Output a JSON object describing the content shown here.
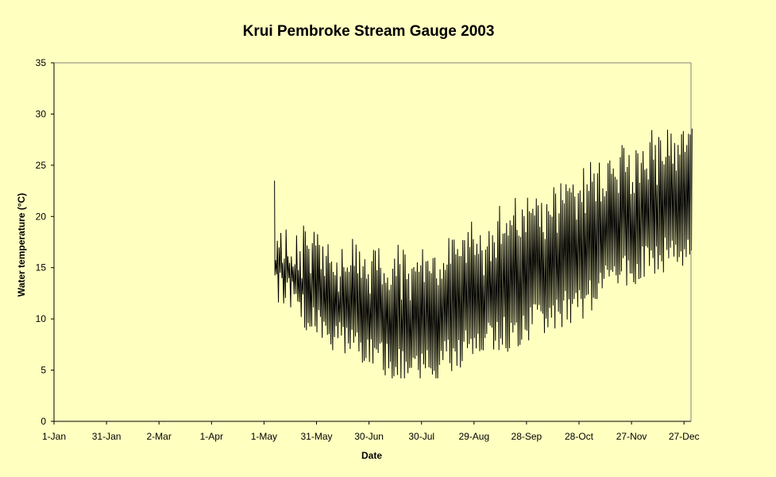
{
  "colors": {
    "background": "#ffffc0",
    "plot_area": "#ffffc0",
    "series": "#000000",
    "axis": "#000000"
  },
  "chart_data": {
    "type": "line",
    "title": "Krui Pembroke Stream Gauge 2003",
    "xlabel": "Date",
    "ylabel": "Water temperature (°C)",
    "xlim": [
      "2003-01-01",
      "2003-12-31"
    ],
    "ylim": [
      0,
      35
    ],
    "y_ticks": [
      0,
      5,
      10,
      15,
      20,
      25,
      30,
      35
    ],
    "x_ticks": [
      {
        "label": "1-Jan",
        "date": "2003-01-01"
      },
      {
        "label": "31-Jan",
        "date": "2003-01-31"
      },
      {
        "label": "2-Mar",
        "date": "2003-03-02"
      },
      {
        "label": "1-Apr",
        "date": "2003-04-01"
      },
      {
        "label": "1-May",
        "date": "2003-05-01"
      },
      {
        "label": "31-May",
        "date": "2003-05-31"
      },
      {
        "label": "30-Jun",
        "date": "2003-06-30"
      },
      {
        "label": "30-Jul",
        "date": "2003-07-30"
      },
      {
        "label": "29-Aug",
        "date": "2003-08-29"
      },
      {
        "label": "28-Sep",
        "date": "2003-09-28"
      },
      {
        "label": "28-Oct",
        "date": "2003-10-28"
      },
      {
        "label": "27-Nov",
        "date": "2003-11-27"
      },
      {
        "label": "27-Dec",
        "date": "2003-12-27"
      }
    ],
    "grid": false,
    "legend": "none",
    "series": [
      {
        "dates": [
          "2003-05-07",
          "2003-05-15",
          "2003-05-22",
          "2003-05-31",
          "2003-06-08",
          "2003-06-15",
          "2003-06-22",
          "2003-06-30",
          "2003-07-08",
          "2003-07-15",
          "2003-07-22",
          "2003-07-30",
          "2003-08-07",
          "2003-08-15",
          "2003-08-22",
          "2003-08-29",
          "2003-09-06",
          "2003-09-13",
          "2003-09-20",
          "2003-09-28",
          "2003-10-06",
          "2003-10-13",
          "2003-10-20",
          "2003-10-28",
          "2003-11-05",
          "2003-11-12",
          "2003-11-19",
          "2003-11-27",
          "2003-12-05",
          "2003-12-12",
          "2003-12-19",
          "2003-12-27",
          "2003-12-31"
        ],
        "daily_min": [
          13.0,
          12.5,
          11.0,
          9.5,
          8.5,
          8.0,
          7.5,
          7.0,
          6.0,
          5.5,
          5.0,
          5.0,
          5.5,
          6.5,
          7.0,
          7.5,
          8.0,
          8.5,
          8.5,
          9.5,
          10.0,
          10.5,
          11.0,
          11.5,
          12.5,
          13.5,
          14.0,
          15.0,
          15.5,
          16.0,
          16.5,
          16.0,
          16.5
        ],
        "daily_max": [
          17.5,
          18.0,
          18.5,
          17.5,
          17.0,
          17.0,
          16.5,
          16.5,
          16.5,
          16.0,
          16.0,
          16.5,
          16.5,
          17.0,
          17.5,
          18.0,
          19.0,
          20.0,
          21.0,
          21.5,
          22.0,
          22.5,
          23.5,
          24.0,
          25.0,
          25.5,
          26.0,
          26.5,
          27.0,
          27.5,
          28.5,
          28.5,
          29.0
        ],
        "first_value": 23.5,
        "peak_max": 30.0,
        "lowest_min": 4.2
      }
    ]
  }
}
